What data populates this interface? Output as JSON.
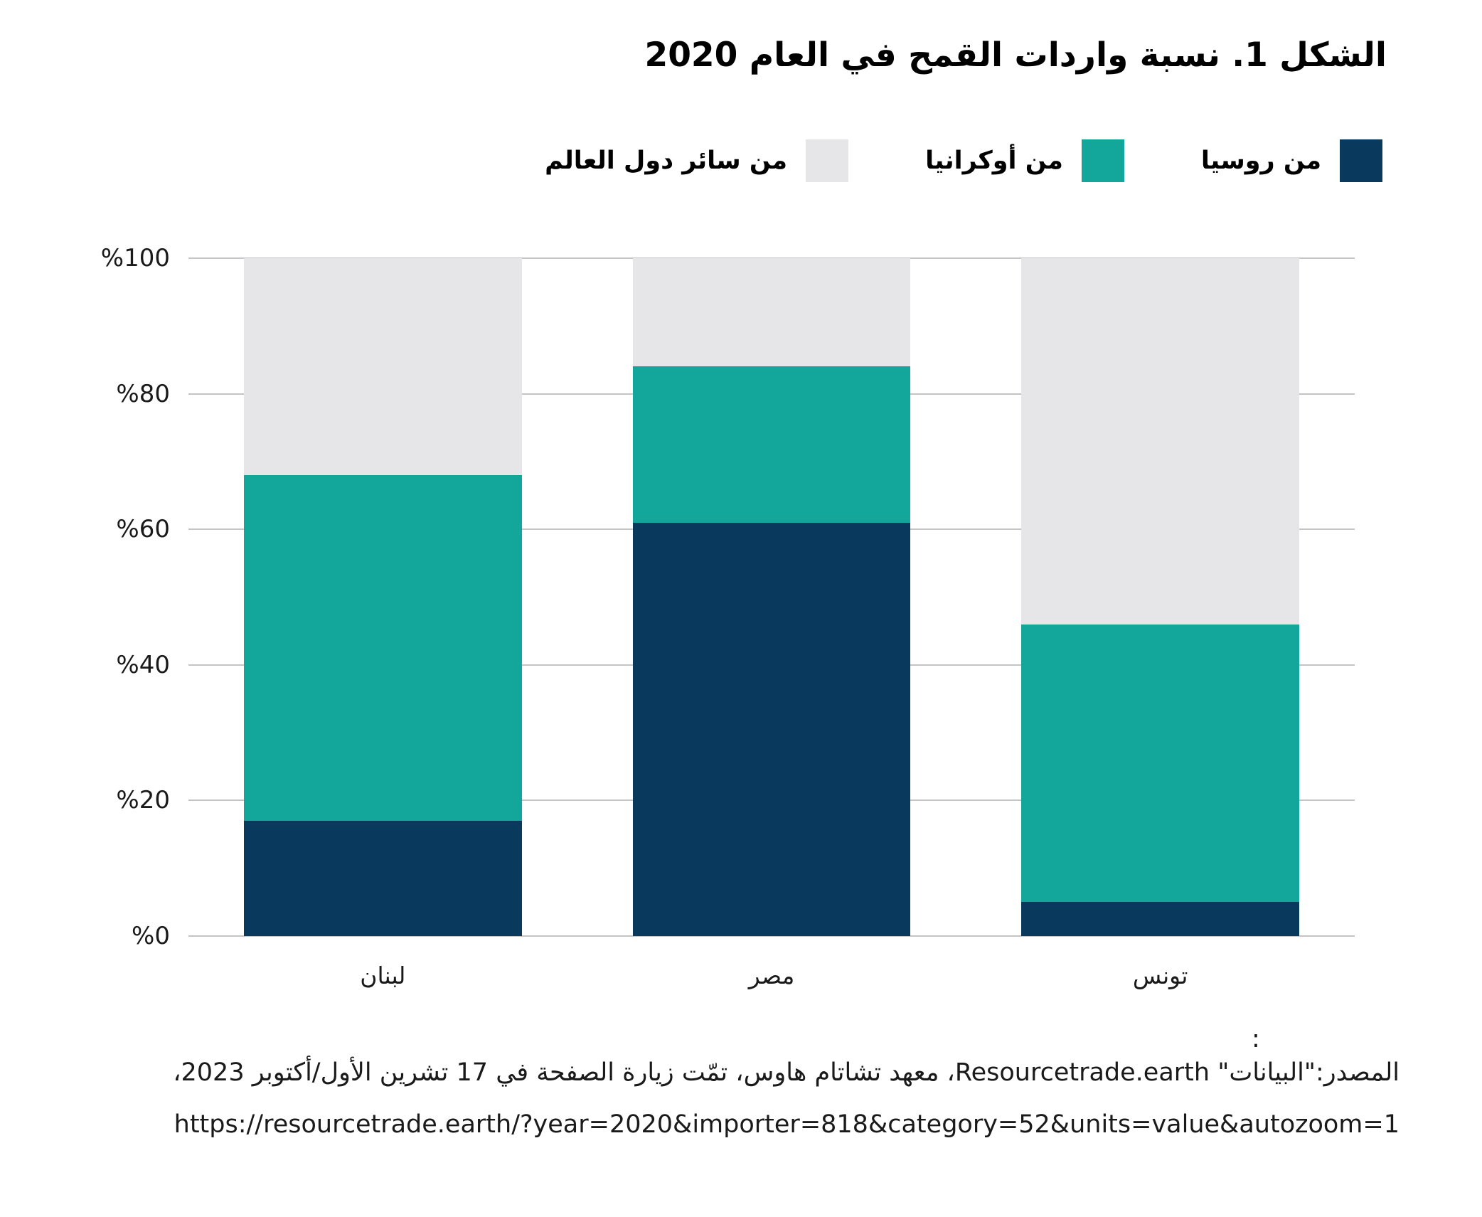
{
  "page": {
    "background": "#ffffff"
  },
  "title": "الشكل 1. نسبة واردات القمح في العام 2020",
  "chart_data": {
    "type": "bar",
    "stacked": true,
    "direction": "rtl",
    "title": "الشكل 1. نسبة واردات القمح في العام 2020",
    "categories": [
      "لبنان",
      "مصر",
      "تونس"
    ],
    "series": [
      {
        "name": "من روسيا",
        "color": "#093A5E",
        "values": [
          17,
          61,
          5
        ]
      },
      {
        "name": "من أوكرانيا",
        "color": "#13A79B",
        "values": [
          51,
          23,
          41
        ]
      },
      {
        "name": "من سائر دول العالم",
        "color": "#E6E6E8",
        "values": [
          32,
          16,
          54
        ]
      }
    ],
    "unit": "%",
    "ylim": [
      0,
      100
    ],
    "yticks": [
      "%0",
      "%20",
      "%40",
      "%60",
      "%80",
      "%100"
    ],
    "grid": true,
    "gridline_color": "#C4C4C4",
    "legend_position": "top-right"
  },
  "source": {
    "colon": ":",
    "line1": "المصدر:\"البيانات\" Resourcetrade.earth، معهد تشاتام هاوس، تمّت زيارة الصفحة في 17 تشرين الأول/أكتوبر 2023،",
    "line2": "https://resourcetrade.earth/?year=2020&importer=818&category=52&units=value&autozoom=1"
  }
}
